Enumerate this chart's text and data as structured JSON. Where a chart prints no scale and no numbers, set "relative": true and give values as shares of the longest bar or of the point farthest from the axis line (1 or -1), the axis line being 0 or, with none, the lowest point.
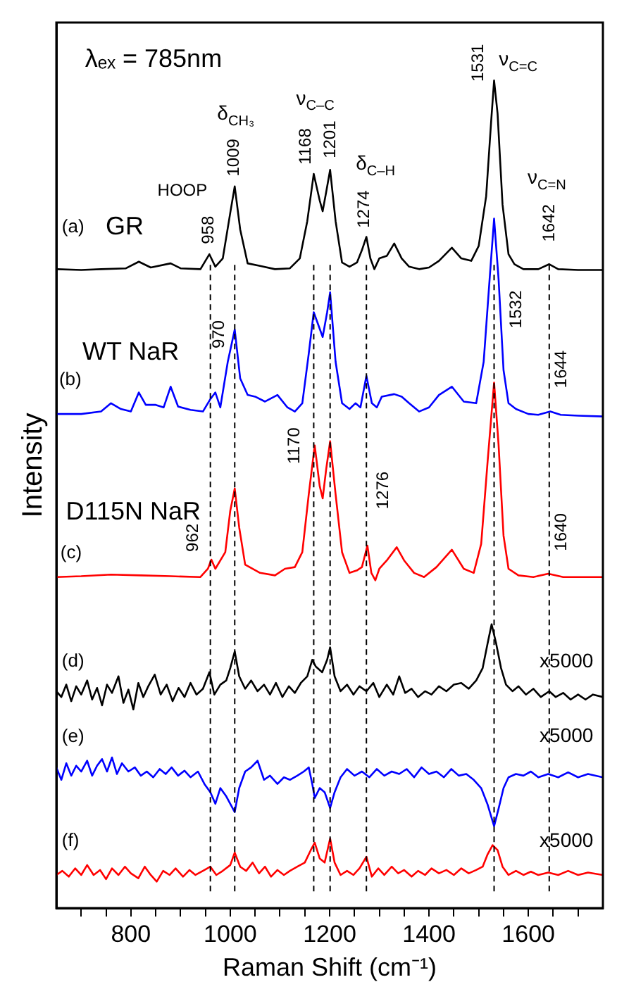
{
  "chart_data": {
    "type": "line",
    "relative": true,
    "xlabel": "Raman Shift (cm⁻¹)",
    "ylabel": "Intensity",
    "xlim": [
      650,
      1750
    ],
    "xticks": [
      {
        "value": 700,
        "label": null
      },
      {
        "value": 750,
        "label": null
      },
      800,
      {
        "value": 850,
        "label": null
      },
      {
        "value": 900,
        "label": null
      },
      {
        "value": 950,
        "label": null
      },
      1000,
      {
        "value": 1050,
        "label": null
      },
      {
        "value": 1100,
        "label": null
      },
      {
        "value": 1150,
        "label": null
      },
      1200,
      {
        "value": 1250,
        "label": null
      },
      {
        "value": 1300,
        "label": null
      },
      {
        "value": 1350,
        "label": null
      },
      1400,
      {
        "value": 1450,
        "label": null
      },
      {
        "value": 1500,
        "label": null
      },
      {
        "value": 1550,
        "label": null
      },
      1600,
      {
        "value": 1650,
        "label": null
      },
      {
        "value": 1700,
        "label": null
      }
    ],
    "legend": false,
    "grid": false,
    "ref_lines": [
      {
        "axis": "x",
        "value": 960,
        "color": "#000000",
        "line_style": "dashed"
      },
      {
        "axis": "x",
        "value": 1009,
        "color": "#000000",
        "line_style": "dashed"
      },
      {
        "axis": "x",
        "value": 1168,
        "color": "#000000",
        "line_style": "dashed"
      },
      {
        "axis": "x",
        "value": 1201,
        "color": "#000000",
        "line_style": "dashed"
      },
      {
        "axis": "x",
        "value": 1274,
        "color": "#000000",
        "line_style": "dashed"
      },
      {
        "axis": "x",
        "value": 1531,
        "color": "#000000",
        "line_style": "dashed"
      },
      {
        "axis": "x",
        "value": 1642,
        "color": "#000000",
        "line_style": "dashed"
      }
    ],
    "annotations": [
      "λₑₓ = 785nm",
      "HOOP",
      "δ$_{CH₃}$",
      "ν$_{C–C}$",
      "δ$_{C–H}$",
      "ν$_{C=C}$",
      "ν$_{C=N}$",
      "958",
      "1009",
      "1168",
      "1201",
      "1274",
      "1531",
      "1642",
      "1532",
      "970",
      "1644",
      "1170",
      "1276",
      "962",
      "1640",
      "(a)",
      "(b)",
      "(c)",
      "(d)",
      "(e)",
      "(f)",
      "x5000",
      "x5000",
      "x5000"
    ],
    "series": [
      {
        "name": "GR",
        "color": "#000000",
        "x": [
          650,
          700,
          740,
          790,
          816,
          840,
          880,
          900,
          940,
          958,
          970,
          985,
          1000,
          1009,
          1020,
          1035,
          1060,
          1090,
          1120,
          1140,
          1155,
          1168,
          1180,
          1186,
          1193,
          1201,
          1212,
          1225,
          1240,
          1255,
          1265,
          1274,
          1282,
          1290,
          1300,
          1315,
          1330,
          1345,
          1360,
          1380,
          1400,
          1420,
          1446,
          1465,
          1485,
          1500,
          1515,
          1525,
          1531,
          1538,
          1548,
          1560,
          1572,
          1590,
          1620,
          1642,
          1660,
          1700,
          1750
        ],
        "values": [
          0.772,
          0.771,
          0.772,
          0.773,
          0.781,
          0.774,
          0.779,
          0.773,
          0.772,
          0.79,
          0.775,
          0.785,
          0.84,
          0.872,
          0.82,
          0.779,
          0.776,
          0.772,
          0.773,
          0.785,
          0.83,
          0.887,
          0.855,
          0.842,
          0.865,
          0.892,
          0.83,
          0.78,
          0.775,
          0.78,
          0.795,
          0.811,
          0.785,
          0.772,
          0.785,
          0.788,
          0.803,
          0.785,
          0.775,
          0.772,
          0.774,
          0.782,
          0.798,
          0.785,
          0.782,
          0.8,
          0.86,
          0.95,
          1.0,
          0.96,
          0.85,
          0.79,
          0.778,
          0.772,
          0.772,
          0.778,
          0.772,
          0.771,
          0.771
        ]
      },
      {
        "name": "WT NaR",
        "color": "#0000ff",
        "x": [
          650,
          700,
          740,
          760,
          780,
          800,
          816,
          830,
          850,
          866,
          880,
          895,
          920,
          945,
          960,
          970,
          980,
          995,
          1009,
          1020,
          1035,
          1050,
          1070,
          1095,
          1115,
          1130,
          1145,
          1158,
          1168,
          1180,
          1186,
          1195,
          1201,
          1212,
          1225,
          1240,
          1252,
          1262,
          1274,
          1285,
          1295,
          1305,
          1330,
          1345,
          1360,
          1380,
          1400,
          1420,
          1446,
          1470,
          1495,
          1510,
          1522,
          1531,
          1540,
          1550,
          1560,
          1575,
          1600,
          1620,
          1644,
          1665,
          1700,
          1750
        ],
        "values": [
          0.597,
          0.597,
          0.6,
          0.61,
          0.603,
          0.6,
          0.623,
          0.608,
          0.608,
          0.605,
          0.63,
          0.606,
          0.602,
          0.6,
          0.615,
          0.623,
          0.605,
          0.66,
          0.699,
          0.64,
          0.62,
          0.618,
          0.612,
          0.62,
          0.605,
          0.6,
          0.61,
          0.67,
          0.72,
          0.7,
          0.69,
          0.72,
          0.744,
          0.66,
          0.61,
          0.603,
          0.61,
          0.605,
          0.643,
          0.61,
          0.605,
          0.618,
          0.621,
          0.618,
          0.61,
          0.6,
          0.605,
          0.62,
          0.63,
          0.612,
          0.61,
          0.66,
          0.76,
          0.833,
          0.76,
          0.65,
          0.61,
          0.603,
          0.597,
          0.596,
          0.6,
          0.596,
          0.595,
          0.594
        ]
      },
      {
        "name": "D115N NaR",
        "color": "#ff0000",
        "x": [
          650,
          700,
          760,
          820,
          880,
          940,
          955,
          962,
          970,
          990,
          1000,
          1009,
          1018,
          1030,
          1060,
          1090,
          1110,
          1130,
          1145,
          1158,
          1170,
          1180,
          1186,
          1193,
          1201,
          1212,
          1225,
          1240,
          1255,
          1265,
          1276,
          1284,
          1292,
          1300,
          1315,
          1335,
          1350,
          1370,
          1390,
          1415,
          1446,
          1470,
          1490,
          1505,
          1518,
          1531,
          1540,
          1550,
          1560,
          1580,
          1610,
          1640,
          1670,
          1710,
          1750
        ],
        "values": [
          0.4,
          0.401,
          0.403,
          0.402,
          0.401,
          0.4,
          0.41,
          0.421,
          0.41,
          0.43,
          0.48,
          0.507,
          0.46,
          0.415,
          0.405,
          0.402,
          0.41,
          0.412,
          0.43,
          0.5,
          0.559,
          0.51,
          0.495,
          0.53,
          0.564,
          0.5,
          0.43,
          0.405,
          0.408,
          0.412,
          0.438,
          0.405,
          0.396,
          0.41,
          0.42,
          0.436,
          0.42,
          0.405,
          0.4,
          0.412,
          0.433,
          0.41,
          0.405,
          0.44,
          0.54,
          0.635,
          0.56,
          0.45,
          0.41,
          0.402,
          0.4,
          0.404,
          0.4,
          0.4,
          0.4
        ]
      },
      {
        "color": "#000000",
        "x": [
          650,
          660,
          670,
          680,
          690,
          700,
          712,
          722,
          732,
          742,
          752,
          762,
          775,
          785,
          795,
          805,
          815,
          825,
          835,
          848,
          860,
          872,
          884,
          896,
          908,
          920,
          932,
          945,
          958,
          968,
          980,
          992,
          1000,
          1009,
          1018,
          1030,
          1042,
          1055,
          1068,
          1080,
          1092,
          1105,
          1118,
          1130,
          1142,
          1155,
          1165,
          1172,
          1185,
          1195,
          1201,
          1210,
          1222,
          1235,
          1248,
          1260,
          1274,
          1288,
          1300,
          1315,
          1328,
          1340,
          1352,
          1365,
          1378,
          1392,
          1405,
          1420,
          1435,
          1450,
          1465,
          1480,
          1495,
          1508,
          1518,
          1526,
          1535,
          1545,
          1555,
          1568,
          1580,
          1595,
          1610,
          1625,
          1642,
          1655,
          1670,
          1685,
          1700,
          1715,
          1730,
          1750
        ],
        "values": [
          0.262,
          0.255,
          0.27,
          0.25,
          0.268,
          0.258,
          0.275,
          0.252,
          0.266,
          0.245,
          0.27,
          0.26,
          0.28,
          0.248,
          0.264,
          0.24,
          0.272,
          0.255,
          0.268,
          0.282,
          0.258,
          0.27,
          0.25,
          0.266,
          0.255,
          0.272,
          0.258,
          0.265,
          0.285,
          0.258,
          0.27,
          0.275,
          0.29,
          0.31,
          0.28,
          0.265,
          0.275,
          0.262,
          0.27,
          0.258,
          0.272,
          0.255,
          0.268,
          0.26,
          0.272,
          0.28,
          0.3,
          0.292,
          0.285,
          0.3,
          0.315,
          0.28,
          0.262,
          0.27,
          0.258,
          0.268,
          0.262,
          0.272,
          0.255,
          0.27,
          0.258,
          0.28,
          0.26,
          0.265,
          0.255,
          0.262,
          0.258,
          0.268,
          0.262,
          0.27,
          0.272,
          0.265,
          0.275,
          0.29,
          0.32,
          0.343,
          0.32,
          0.29,
          0.27,
          0.262,
          0.268,
          0.258,
          0.265,
          0.255,
          0.262,
          0.255,
          0.26,
          0.252,
          0.258,
          0.252,
          0.258,
          0.255
        ]
      },
      {
        "color": "#0000ff",
        "x": [
          650,
          660,
          670,
          680,
          690,
          700,
          712,
          722,
          732,
          742,
          752,
          762,
          772,
          782,
          795,
          808,
          820,
          832,
          845,
          858,
          870,
          882,
          895,
          908,
          920,
          935,
          948,
          960,
          970,
          980,
          992,
          1009,
          1018,
          1030,
          1042,
          1055,
          1068,
          1080,
          1095,
          1108,
          1120,
          1135,
          1148,
          1158,
          1165,
          1170,
          1180,
          1190,
          1201,
          1210,
          1222,
          1235,
          1250,
          1265,
          1280,
          1295,
          1310,
          1325,
          1340,
          1355,
          1370,
          1385,
          1400,
          1415,
          1430,
          1445,
          1460,
          1475,
          1490,
          1505,
          1518,
          1531,
          1540,
          1550,
          1560,
          1575,
          1590,
          1605,
          1620,
          1640,
          1660,
          1680,
          1700,
          1720,
          1750
        ],
        "values": [
          0.17,
          0.155,
          0.175,
          0.16,
          0.172,
          0.165,
          0.178,
          0.16,
          0.172,
          0.18,
          0.165,
          0.182,
          0.162,
          0.175,
          0.165,
          0.17,
          0.16,
          0.165,
          0.158,
          0.168,
          0.162,
          0.17,
          0.16,
          0.166,
          0.158,
          0.165,
          0.15,
          0.14,
          0.126,
          0.145,
          0.135,
          0.116,
          0.145,
          0.165,
          0.17,
          0.178,
          0.155,
          0.16,
          0.15,
          0.158,
          0.155,
          0.16,
          0.165,
          0.17,
          0.15,
          0.133,
          0.145,
          0.14,
          0.121,
          0.14,
          0.158,
          0.168,
          0.16,
          0.165,
          0.158,
          0.168,
          0.16,
          0.165,
          0.162,
          0.168,
          0.158,
          0.17,
          0.162,
          0.165,
          0.158,
          0.168,
          0.16,
          0.162,
          0.155,
          0.145,
          0.125,
          0.099,
          0.12,
          0.145,
          0.158,
          0.162,
          0.16,
          0.165,
          0.158,
          0.162,
          0.158,
          0.164,
          0.158,
          0.162,
          0.158
        ]
      },
      {
        "color": "#ff0000",
        "x": [
          650,
          662,
          675,
          688,
          700,
          712,
          725,
          738,
          750,
          762,
          775,
          788,
          800,
          815,
          828,
          840,
          852,
          865,
          878,
          890,
          905,
          918,
          930,
          945,
          960,
          972,
          985,
          1000,
          1009,
          1020,
          1032,
          1045,
          1058,
          1070,
          1082,
          1095,
          1108,
          1120,
          1135,
          1150,
          1162,
          1170,
          1180,
          1190,
          1201,
          1210,
          1222,
          1235,
          1248,
          1260,
          1274,
          1285,
          1298,
          1310,
          1325,
          1338,
          1350,
          1365,
          1378,
          1392,
          1405,
          1420,
          1435,
          1450,
          1465,
          1480,
          1495,
          1508,
          1518,
          1528,
          1538,
          1548,
          1560,
          1575,
          1590,
          1605,
          1620,
          1640,
          1660,
          1680,
          1700,
          1720,
          1750
        ],
        "values": [
          0.04,
          0.045,
          0.038,
          0.048,
          0.04,
          0.052,
          0.04,
          0.046,
          0.035,
          0.048,
          0.04,
          0.05,
          0.042,
          0.036,
          0.05,
          0.04,
          0.032,
          0.045,
          0.04,
          0.048,
          0.038,
          0.046,
          0.04,
          0.045,
          0.05,
          0.04,
          0.045,
          0.052,
          0.067,
          0.05,
          0.045,
          0.055,
          0.042,
          0.05,
          0.038,
          0.046,
          0.04,
          0.045,
          0.05,
          0.055,
          0.07,
          0.079,
          0.06,
          0.055,
          0.084,
          0.055,
          0.04,
          0.045,
          0.04,
          0.048,
          0.062,
          0.038,
          0.048,
          0.04,
          0.05,
          0.042,
          0.046,
          0.038,
          0.045,
          0.04,
          0.048,
          0.042,
          0.046,
          0.04,
          0.048,
          0.042,
          0.046,
          0.05,
          0.065,
          0.076,
          0.07,
          0.05,
          0.04,
          0.045,
          0.04,
          0.044,
          0.04,
          0.043,
          0.04,
          0.045,
          0.04,
          0.043,
          0.04
        ]
      }
    ]
  }
}
